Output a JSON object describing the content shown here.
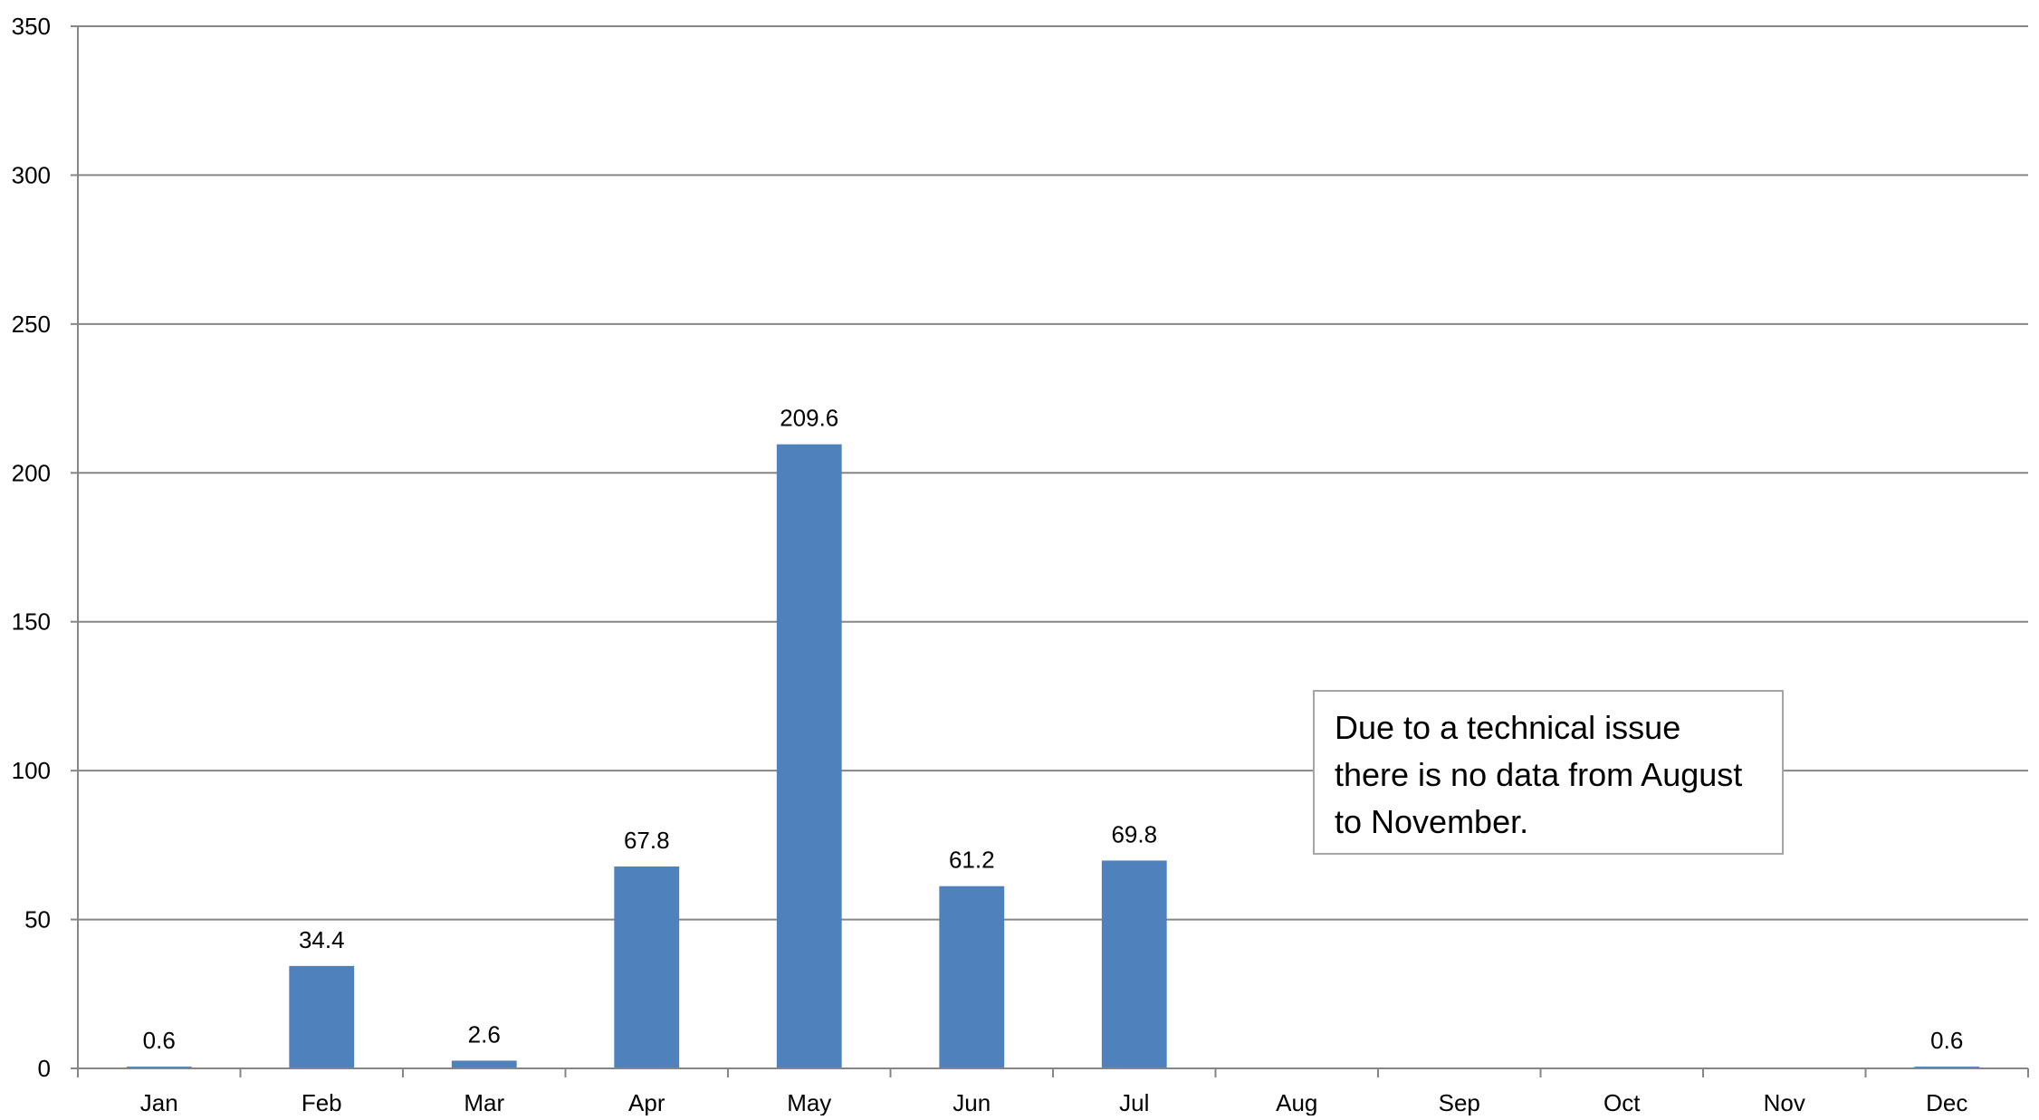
{
  "chart_data": {
    "type": "bar",
    "categories": [
      "Jan",
      "Feb",
      "Mar",
      "Apr",
      "May",
      "Jun",
      "Jul",
      "Aug",
      "Sep",
      "Oct",
      "Nov",
      "Dec"
    ],
    "values": [
      0.6,
      34.4,
      2.6,
      67.8,
      209.6,
      61.2,
      69.8,
      null,
      null,
      null,
      null,
      0.6
    ],
    "data_labels": [
      "0.6",
      "34.4",
      "2.6",
      "67.8",
      "209.6",
      "61.2",
      "69.8",
      "",
      "",
      "",
      "",
      "0.6"
    ],
    "ylim": [
      0,
      350
    ],
    "yticks": [
      0,
      50,
      100,
      150,
      200,
      250,
      300,
      350
    ],
    "grid": true,
    "bar_color": "#4f81bd",
    "gridline_color": "#868686",
    "annotation": "Due to a technical issue there is no data from August to November."
  }
}
